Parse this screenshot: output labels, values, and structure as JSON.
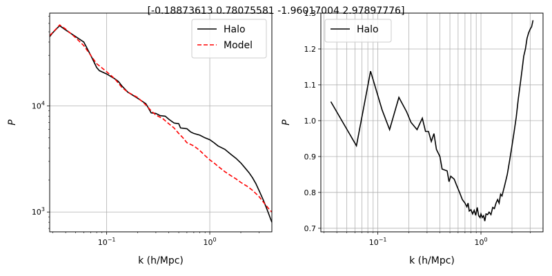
{
  "suptitle": "[-0.18873613  0.78075581 -1.96017004  2.97897776]",
  "colors": {
    "halo": "#000000",
    "model": "#ff0000",
    "grid": "#b0b0b0"
  },
  "chart_data": [
    {
      "type": "line",
      "xscale": "log",
      "yscale": "log",
      "xlabel": "k (h/Mpc)",
      "ylabel": "P",
      "xlim": [
        0.028,
        4.0
      ],
      "ylim": [
        650,
        75000
      ],
      "grid": true,
      "legend_position": "top-right",
      "x_ticks": [
        {
          "value": 0.1,
          "label": "10",
          "exp": "−1"
        },
        {
          "value": 1.0,
          "label": "10",
          "exp": "0"
        }
      ],
      "y_ticks": [
        {
          "value": 1000,
          "label": "10",
          "exp": "3"
        },
        {
          "value": 10000,
          "label": "10",
          "exp": "4"
        }
      ],
      "series": [
        {
          "name": "Halo",
          "style": "solid",
          "color": "#000000",
          "points": [
            [
              0.028,
              45000
            ],
            [
              0.03,
              49000
            ],
            [
              0.033,
              54000
            ],
            [
              0.035,
              57000
            ],
            [
              0.04,
              52000
            ],
            [
              0.05,
              45000
            ],
            [
              0.06,
              40000
            ],
            [
              0.07,
              30000
            ],
            [
              0.08,
              23000
            ],
            [
              0.085,
              21500
            ],
            [
              0.1,
              20000
            ],
            [
              0.12,
              18000
            ],
            [
              0.13,
              17000
            ],
            [
              0.14,
              15500
            ],
            [
              0.16,
              13500
            ],
            [
              0.2,
              11800
            ],
            [
              0.24,
              10500
            ],
            [
              0.27,
              8600
            ],
            [
              0.3,
              8500
            ],
            [
              0.33,
              8100
            ],
            [
              0.37,
              8000
            ],
            [
              0.4,
              7500
            ],
            [
              0.45,
              6900
            ],
            [
              0.5,
              6800
            ],
            [
              0.52,
              6200
            ],
            [
              0.6,
              6100
            ],
            [
              0.65,
              5700
            ],
            [
              0.7,
              5500
            ],
            [
              0.8,
              5300
            ],
            [
              0.9,
              5000
            ],
            [
              1.0,
              4800
            ],
            [
              1.1,
              4500
            ],
            [
              1.2,
              4200
            ],
            [
              1.4,
              3900
            ],
            [
              1.6,
              3500
            ],
            [
              1.8,
              3200
            ],
            [
              2.0,
              2900
            ],
            [
              2.2,
              2600
            ],
            [
              2.4,
              2350
            ],
            [
              2.6,
              2100
            ],
            [
              2.8,
              1850
            ],
            [
              3.0,
              1600
            ],
            [
              3.3,
              1300
            ],
            [
              3.6,
              1050
            ],
            [
              4.0,
              800
            ]
          ]
        },
        {
          "name": "Model",
          "style": "dashed",
          "color": "#ff0000",
          "points": [
            [
              0.028,
              46000
            ],
            [
              0.031,
              51000
            ],
            [
              0.035,
              58000
            ],
            [
              0.04,
              53000
            ],
            [
              0.05,
              44000
            ],
            [
              0.06,
              37000
            ],
            [
              0.07,
              30000
            ],
            [
              0.08,
              25000
            ],
            [
              0.1,
              21000
            ],
            [
              0.12,
              18000
            ],
            [
              0.14,
              15000
            ],
            [
              0.16,
              13500
            ],
            [
              0.2,
              12000
            ],
            [
              0.24,
              10200
            ],
            [
              0.27,
              9000
            ],
            [
              0.3,
              8200
            ],
            [
              0.35,
              7600
            ],
            [
              0.4,
              6800
            ],
            [
              0.45,
              6200
            ],
            [
              0.5,
              5500
            ],
            [
              0.55,
              5000
            ],
            [
              0.6,
              4500
            ],
            [
              0.7,
              4200
            ],
            [
              0.8,
              3800
            ],
            [
              0.9,
              3400
            ],
            [
              1.0,
              3100
            ],
            [
              1.1,
              2900
            ],
            [
              1.2,
              2700
            ],
            [
              1.4,
              2400
            ],
            [
              1.6,
              2200
            ],
            [
              1.8,
              2050
            ],
            [
              2.0,
              1900
            ],
            [
              2.3,
              1750
            ],
            [
              2.6,
              1600
            ],
            [
              3.0,
              1400
            ],
            [
              3.4,
              1200
            ],
            [
              3.8,
              1050
            ],
            [
              4.0,
              1000
            ]
          ]
        }
      ]
    },
    {
      "type": "line",
      "xscale": "log",
      "yscale": "linear",
      "xlabel": "k (h/Mpc)",
      "ylabel": "P",
      "xlim": [
        0.028,
        4.0
      ],
      "ylim": [
        0.69,
        1.3
      ],
      "grid": true,
      "legend_position": "top-left",
      "x_ticks": [
        {
          "value": 0.1,
          "label": "10",
          "exp": "−1"
        },
        {
          "value": 1.0,
          "label": "10",
          "exp": "0"
        }
      ],
      "y_ticks": [
        {
          "value": 0.7,
          "label": "0.7"
        },
        {
          "value": 0.8,
          "label": "0.8"
        },
        {
          "value": 0.9,
          "label": "0.9"
        },
        {
          "value": 1.0,
          "label": "1.0"
        },
        {
          "value": 1.1,
          "label": "1.1"
        },
        {
          "value": 1.2,
          "label": "1.2"
        },
        {
          "value": 1.3,
          "label": "1.3"
        }
      ],
      "series": [
        {
          "name": "Halo",
          "style": "solid",
          "color": "#000000",
          "points": [
            [
              0.035,
              1.053
            ],
            [
              0.062,
              0.93
            ],
            [
              0.085,
              1.138
            ],
            [
              0.11,
              1.03
            ],
            [
              0.13,
              0.975
            ],
            [
              0.16,
              1.065
            ],
            [
              0.19,
              1.025
            ],
            [
              0.21,
              0.995
            ],
            [
              0.24,
              0.975
            ],
            [
              0.27,
              1.007
            ],
            [
              0.29,
              0.97
            ],
            [
              0.31,
              0.97
            ],
            [
              0.33,
              0.942
            ],
            [
              0.35,
              0.964
            ],
            [
              0.37,
              0.92
            ],
            [
              0.4,
              0.9
            ],
            [
              0.42,
              0.865
            ],
            [
              0.47,
              0.86
            ],
            [
              0.49,
              0.83
            ],
            [
              0.51,
              0.845
            ],
            [
              0.55,
              0.837
            ],
            [
              0.58,
              0.82
            ],
            [
              0.62,
              0.8
            ],
            [
              0.66,
              0.78
            ],
            [
              0.7,
              0.77
            ],
            [
              0.73,
              0.76
            ],
            [
              0.75,
              0.77
            ],
            [
              0.77,
              0.748
            ],
            [
              0.8,
              0.752
            ],
            [
              0.83,
              0.74
            ],
            [
              0.86,
              0.75
            ],
            [
              0.89,
              0.736
            ],
            [
              0.92,
              0.758
            ],
            [
              0.95,
              0.735
            ],
            [
              0.98,
              0.73
            ],
            [
              1.0,
              0.74
            ],
            [
              1.03,
              0.73
            ],
            [
              1.06,
              0.735
            ],
            [
              1.09,
              0.72
            ],
            [
              1.12,
              0.74
            ],
            [
              1.16,
              0.738
            ],
            [
              1.2,
              0.745
            ],
            [
              1.25,
              0.738
            ],
            [
              1.3,
              0.758
            ],
            [
              1.35,
              0.755
            ],
            [
              1.4,
              0.77
            ],
            [
              1.45,
              0.78
            ],
            [
              1.5,
              0.77
            ],
            [
              1.55,
              0.795
            ],
            [
              1.6,
              0.79
            ],
            [
              1.7,
              0.82
            ],
            [
              1.8,
              0.85
            ],
            [
              1.9,
              0.89
            ],
            [
              2.0,
              0.93
            ],
            [
              2.1,
              0.97
            ],
            [
              2.2,
              1.01
            ],
            [
              2.3,
              1.06
            ],
            [
              2.4,
              1.1
            ],
            [
              2.5,
              1.14
            ],
            [
              2.6,
              1.18
            ],
            [
              2.7,
              1.2
            ],
            [
              2.8,
              1.23
            ],
            [
              2.9,
              1.245
            ],
            [
              3.0,
              1.255
            ],
            [
              3.1,
              1.262
            ],
            [
              3.2,
              1.28
            ]
          ]
        }
      ]
    }
  ]
}
